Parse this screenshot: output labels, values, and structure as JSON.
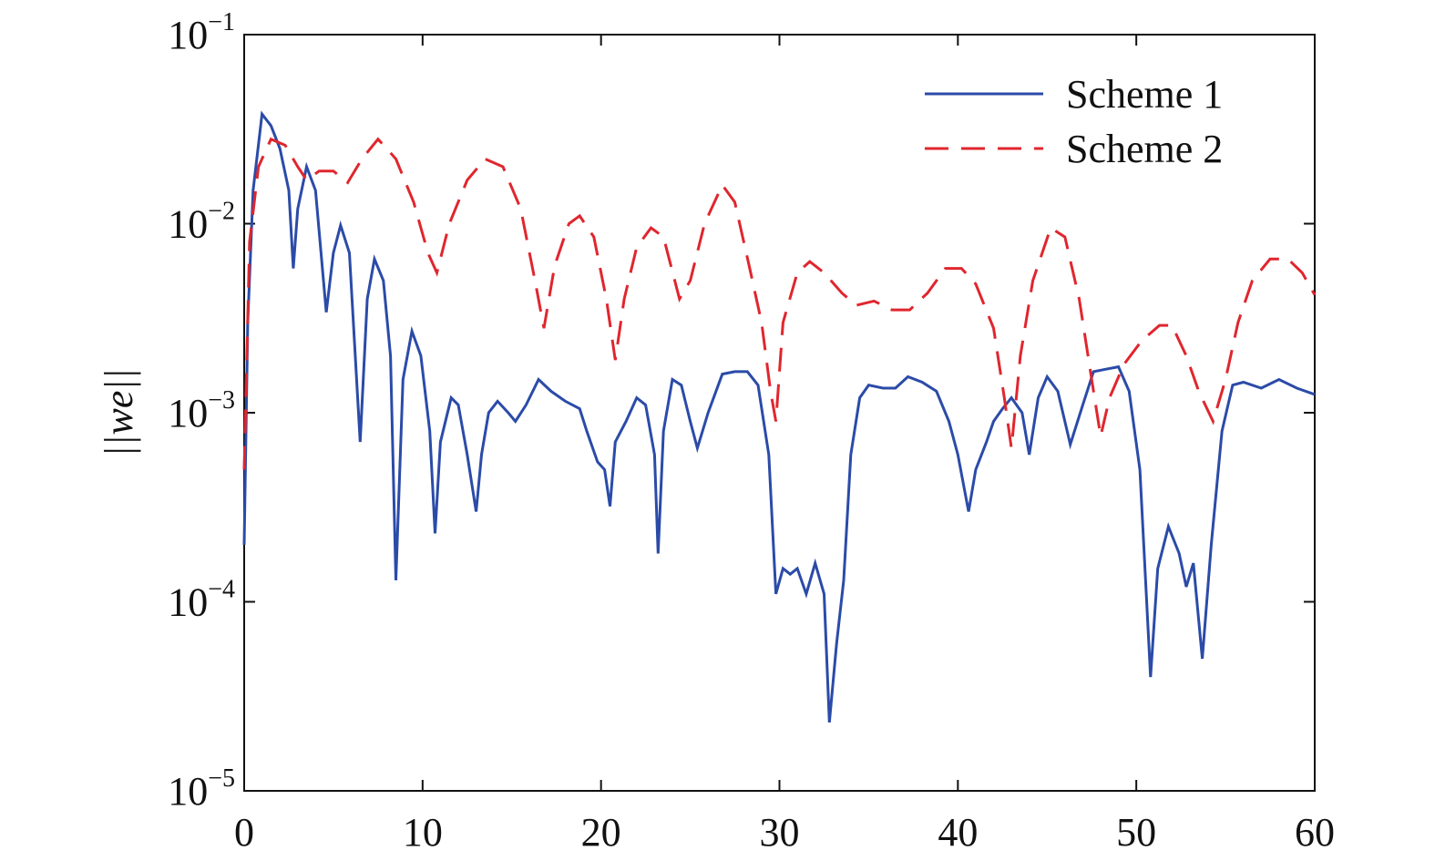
{
  "chart_data": {
    "type": "line",
    "ylabel": "||we||",
    "ylog": true,
    "xlim": [
      0,
      60
    ],
    "xticks": [
      0,
      10,
      20,
      30,
      40,
      50,
      60
    ],
    "ylim": [
      1e-05,
      0.1
    ],
    "yticks": [
      {
        "value": 1e-05,
        "label": "10−5"
      },
      {
        "value": 0.0001,
        "label": "10−4"
      },
      {
        "value": 0.001,
        "label": "10−3"
      },
      {
        "value": 0.01,
        "label": "10−2"
      },
      {
        "value": 0.1,
        "label": "10−1"
      }
    ],
    "legend": "upper right",
    "series": [
      {
        "name": "Scheme 1",
        "color": "#2b4ba8",
        "linestyle": "solid",
        "x": [
          0,
          0.2,
          0.5,
          1.0,
          1.5,
          2.0,
          2.5,
          2.75,
          3.0,
          3.5,
          4.0,
          4.6,
          5.0,
          5.4,
          5.9,
          6.5,
          6.9,
          7.3,
          7.8,
          8.2,
          8.5,
          8.9,
          9.4,
          9.9,
          10.4,
          10.7,
          11.0,
          11.6,
          12.0,
          12.5,
          13.0,
          13.3,
          13.7,
          14.2,
          14.8,
          15.2,
          15.8,
          16.5,
          17.2,
          18.0,
          18.8,
          19.2,
          19.8,
          20.2,
          20.5,
          20.8,
          21.4,
          22.0,
          22.5,
          23.0,
          23.2,
          23.5,
          24.0,
          24.5,
          25.0,
          25.4,
          26.0,
          26.8,
          27.5,
          28.2,
          28.8,
          29.4,
          29.8,
          30.2,
          30.6,
          31.0,
          31.5,
          32.0,
          32.5,
          32.8,
          33.2,
          33.6,
          34.0,
          34.5,
          35.0,
          35.8,
          36.5,
          37.2,
          38.0,
          38.8,
          39.5,
          40.0,
          40.6,
          41.0,
          41.6,
          42.0,
          42.5,
          43.0,
          43.6,
          44.0,
          44.5,
          45.0,
          45.6,
          46.3,
          47.0,
          47.6,
          48.3,
          49.0,
          49.6,
          50.2,
          50.8,
          51.2,
          51.8,
          52.4,
          52.8,
          53.2,
          53.7,
          54.2,
          54.8,
          55.4,
          56.0,
          57.0,
          58.0,
          59.0,
          60.0
        ],
        "values": [
          0.0002,
          0.003,
          0.015,
          0.038,
          0.033,
          0.025,
          0.015,
          0.0058,
          0.012,
          0.02,
          0.015,
          0.0034,
          0.007,
          0.0098,
          0.007,
          0.0007,
          0.004,
          0.0065,
          0.005,
          0.002,
          0.00013,
          0.0015,
          0.0027,
          0.002,
          0.0008,
          0.00023,
          0.0007,
          0.0012,
          0.0011,
          0.0006,
          0.0003,
          0.0006,
          0.001,
          0.00115,
          0.001,
          0.0009,
          0.0011,
          0.0015,
          0.0013,
          0.00115,
          0.00105,
          0.0008,
          0.00055,
          0.0005,
          0.00032,
          0.0007,
          0.0009,
          0.0012,
          0.0011,
          0.0006,
          0.00018,
          0.0008,
          0.0015,
          0.0014,
          0.0009,
          0.00065,
          0.001,
          0.0016,
          0.00165,
          0.00165,
          0.0014,
          0.0006,
          0.00011,
          0.00015,
          0.00014,
          0.00015,
          0.00011,
          0.00016,
          0.00011,
          2.3e-05,
          6e-05,
          0.00013,
          0.0006,
          0.0012,
          0.0014,
          0.00135,
          0.00135,
          0.00155,
          0.00145,
          0.0013,
          0.0009,
          0.0006,
          0.0003,
          0.0005,
          0.0007,
          0.0009,
          0.00105,
          0.0012,
          0.001,
          0.0006,
          0.0012,
          0.00155,
          0.0013,
          0.00068,
          0.0011,
          0.00165,
          0.0017,
          0.00175,
          0.0013,
          0.0005,
          4e-05,
          0.00015,
          0.00025,
          0.00018,
          0.00012,
          0.00016,
          5e-05,
          0.0002,
          0.0008,
          0.0014,
          0.00145,
          0.00135,
          0.0015,
          0.00135,
          0.00125
        ]
      },
      {
        "name": "Scheme 2",
        "color": "#e0262e",
        "linestyle": "dashed",
        "x": [
          0,
          0.3,
          0.8,
          1.5,
          2.3,
          3.0,
          3.5,
          4.2,
          5.0,
          5.8,
          6.6,
          7.5,
          8.5,
          9.5,
          10.3,
          10.8,
          11.5,
          12.5,
          13.5,
          14.5,
          15.5,
          16.3,
          16.8,
          17.4,
          18.2,
          18.8,
          19.6,
          20.3,
          20.8,
          21.3,
          22.0,
          22.8,
          23.5,
          24.4,
          25.0,
          25.8,
          26.8,
          27.5,
          28.3,
          29.0,
          29.5,
          29.8,
          30.2,
          31.0,
          31.7,
          32.5,
          33.5,
          34.3,
          35.3,
          36.3,
          37.3,
          38.3,
          39.3,
          40.2,
          41.0,
          42.0,
          42.6,
          43.0,
          43.5,
          44.2,
          45.2,
          46.0,
          46.8,
          47.5,
          48.0,
          48.5,
          49.3,
          50.3,
          51.3,
          52.0,
          52.8,
          53.5,
          54.3,
          55.0,
          55.7,
          56.5,
          57.5,
          58.5,
          59.3,
          60.0
        ],
        "values": [
          0.0005,
          0.008,
          0.02,
          0.028,
          0.026,
          0.02,
          0.017,
          0.019,
          0.019,
          0.0165,
          0.022,
          0.028,
          0.022,
          0.013,
          0.007,
          0.0055,
          0.01,
          0.017,
          0.022,
          0.02,
          0.012,
          0.005,
          0.0028,
          0.006,
          0.01,
          0.011,
          0.0085,
          0.004,
          0.0019,
          0.004,
          0.0075,
          0.0095,
          0.0085,
          0.004,
          0.005,
          0.01,
          0.016,
          0.013,
          0.006,
          0.003,
          0.0013,
          0.0009,
          0.003,
          0.0055,
          0.0063,
          0.0055,
          0.0043,
          0.0037,
          0.0039,
          0.0035,
          0.0035,
          0.0043,
          0.0058,
          0.0058,
          0.0048,
          0.0028,
          0.0012,
          0.00065,
          0.002,
          0.005,
          0.0095,
          0.0085,
          0.004,
          0.0015,
          0.00075,
          0.0012,
          0.0018,
          0.0024,
          0.0029,
          0.0029,
          0.002,
          0.0013,
          0.0009,
          0.0015,
          0.003,
          0.005,
          0.0065,
          0.0065,
          0.0055,
          0.0042
        ]
      }
    ]
  }
}
